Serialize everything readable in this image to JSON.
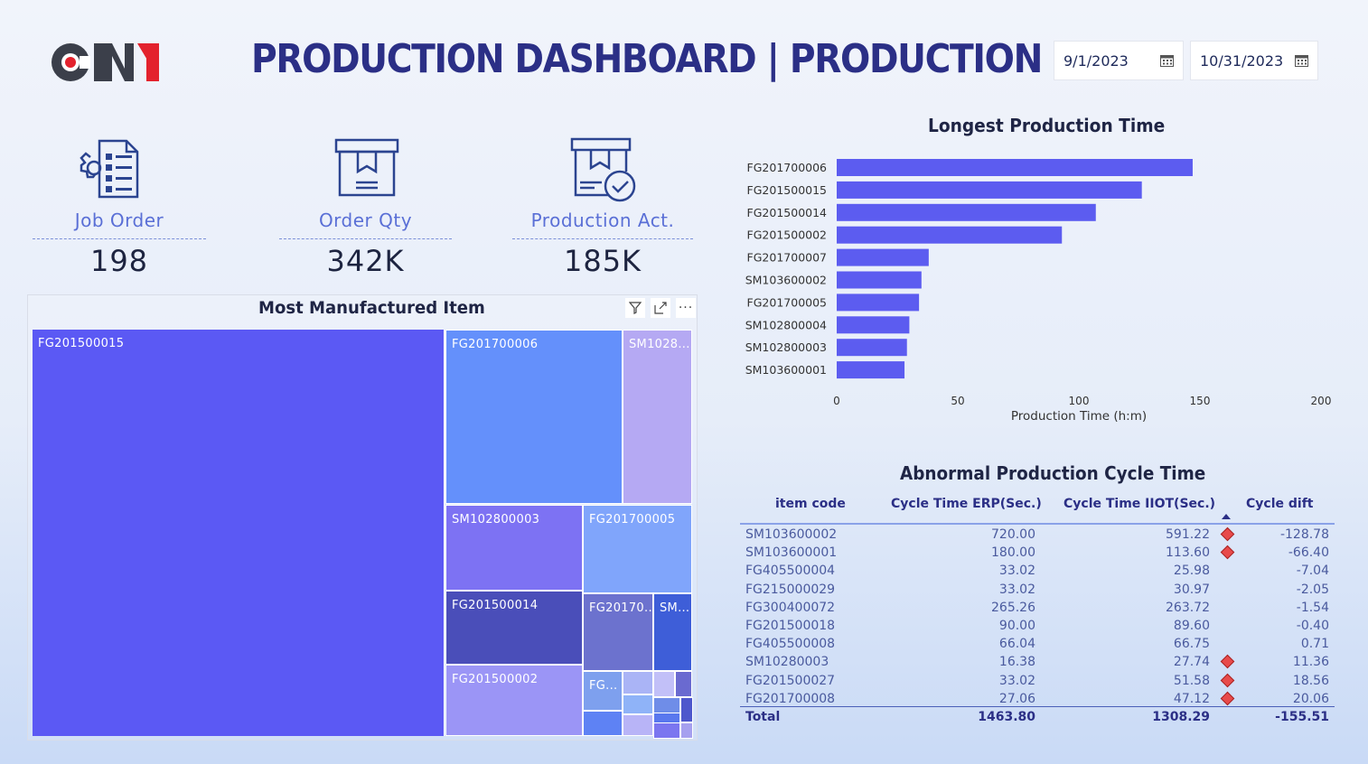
{
  "header": {
    "logo_text": "CNI",
    "title": "PRODUCTION DASHBOARD | PRODUCTION",
    "start_date": "9/1/2023",
    "end_date": "10/31/2023"
  },
  "kpis": [
    {
      "label": "Job Order",
      "value": "198",
      "icon": "job-order-icon"
    },
    {
      "label": "Order Qty",
      "value": "342K",
      "icon": "box-icon"
    },
    {
      "label": "Production Act.",
      "value": "185K",
      "icon": "box-check-icon"
    }
  ],
  "treemap": {
    "title": "Most Manufactured Item",
    "tiles": [
      "FG201500015",
      "FG201700006",
      "SM1028...",
      "SM102800003",
      "FG201700005",
      "FG201500014",
      "FG20170...",
      "SM...",
      "FG201500002",
      "FG..."
    ]
  },
  "bar_chart": {
    "chart_data": {
      "type": "bar",
      "orientation": "horizontal",
      "title": "Longest Production Time",
      "xlabel": "Production Time (h:m)",
      "ylabel": "",
      "categories": [
        "FG201700006",
        "FG201500015",
        "FG201500014",
        "FG201500002",
        "FG201700007",
        "SM103600002",
        "FG201700005",
        "SM102800004",
        "SM102800003",
        "SM103600001"
      ],
      "values": [
        147,
        126,
        107,
        93,
        38,
        35,
        34,
        30,
        29,
        28
      ],
      "xlim": [
        0,
        200
      ],
      "xticks": [
        "0",
        "50",
        "100",
        "150",
        "200"
      ],
      "color": "#5c5cf0"
    }
  },
  "table": {
    "title": "Abnormal Production Cycle Time",
    "columns": [
      "item code",
      "Cycle Time ERP(Sec.)",
      "Cycle Time IIOT(Sec.)",
      "Cycle dift"
    ],
    "rows": [
      {
        "code": "SM103600002",
        "erp": "720.00",
        "iiot": "591.22",
        "dift": "-128.78",
        "flag": true
      },
      {
        "code": "SM103600001",
        "erp": "180.00",
        "iiot": "113.60",
        "dift": "-66.40",
        "flag": true
      },
      {
        "code": "FG405500004",
        "erp": "33.02",
        "iiot": "25.98",
        "dift": "-7.04",
        "flag": false
      },
      {
        "code": "FG215000029",
        "erp": "33.02",
        "iiot": "30.97",
        "dift": "-2.05",
        "flag": false
      },
      {
        "code": "FG300400072",
        "erp": "265.26",
        "iiot": "263.72",
        "dift": "-1.54",
        "flag": false
      },
      {
        "code": "FG201500018",
        "erp": "90.00",
        "iiot": "89.60",
        "dift": "-0.40",
        "flag": false
      },
      {
        "code": "FG405500008",
        "erp": "66.04",
        "iiot": "66.75",
        "dift": "0.71",
        "flag": false
      },
      {
        "code": "SM10280003",
        "erp": "16.38",
        "iiot": "27.74",
        "dift": "11.36",
        "flag": true
      },
      {
        "code": "FG201500027",
        "erp": "33.02",
        "iiot": "51.58",
        "dift": "18.56",
        "flag": true
      },
      {
        "code": "FG201700008",
        "erp": "27.06",
        "iiot": "47.12",
        "dift": "20.06",
        "flag": true
      }
    ],
    "total": {
      "label": "Total",
      "erp": "1463.80",
      "iiot": "1308.29",
      "dift": "-155.51"
    }
  },
  "colors": {
    "accent": "#5c5cf0",
    "title": "#2b2f86",
    "flag": "#e84a4a"
  }
}
